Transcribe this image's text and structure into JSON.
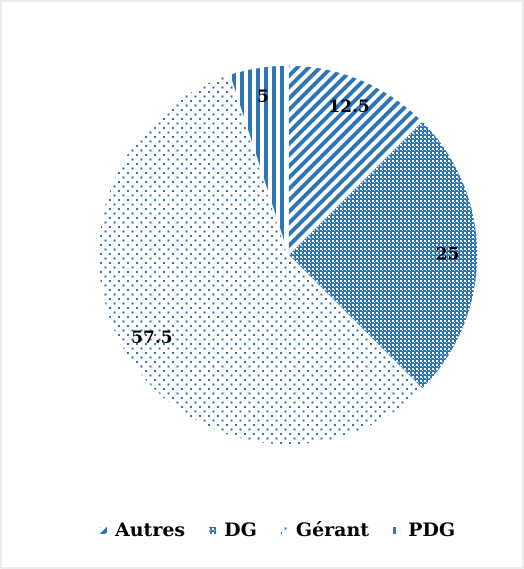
{
  "chart_data": {
    "type": "pie",
    "categories": [
      "Autres",
      "DG",
      "Gérant",
      "PDG"
    ],
    "values": [
      12.5,
      25,
      57.5,
      5
    ],
    "color": "#2e75b6",
    "legend": "bottom"
  }
}
